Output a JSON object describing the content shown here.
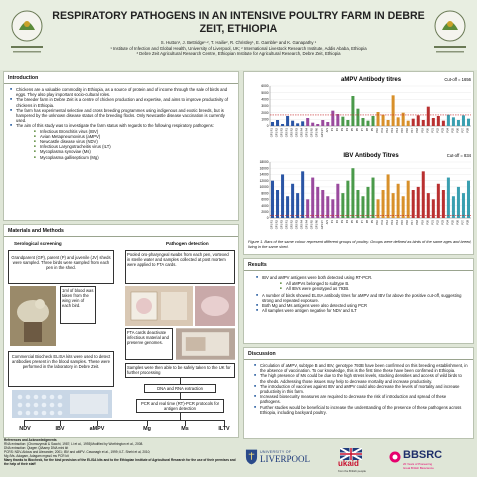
{
  "header": {
    "title": "RESPIRATORY PATHOGENS IN AN INTENSIVE POULTRY FARM IN DEBRE ZEIT, ETHIOPIA",
    "authors": "S. Hutton¹, J. Bettridge¹·², T. Hailie², R. Christley¹, E. Gamble¹ and K. Ganapathy ¹",
    "affil1": "¹ Institute of Infection and Global Health, University of Liverpool, UK; ² International Livestock Research Institute, Addis Ababa, Ethiopia",
    "affil2": "³ Debre Zeit Agricultural Research Centre, Ethiopian Institute for Agricultural Research, Debre Zeit, Ethiopia"
  },
  "intro": {
    "heading": "Introduction",
    "bullets": [
      "Chickens are a valuable commodity in Ethiopia, as a source of protein and of income through the sale of birds and eggs. They also play important socio-cultural roles.",
      "The breeder farm in Debre Zeit is a centre of chicken production and expertise, and aims to improve productivity of chickens in Ethiopia.",
      "The farm has experimental selective and cross breeding programmes using indigenous and exotic breeds, but is hampered by the unknown disease status of the breeding flocks. Only Newcastle disease vaccination is currently used.",
      "The aim of this study was to investigate the farm status with regards to the following respiratory pathogens:"
    ],
    "pathogens": [
      "Infectious Bronchitis virus (IBV)",
      "Avian Metapneumovirus (aMPV)",
      "Newcastle disease virus (NDV)",
      "Infectious Laryngotracheitis virus (ILT)",
      "Mycoplasma synoviae (Ms)",
      "Mycoplasma gallisepticum (Mg)"
    ]
  },
  "methods": {
    "heading": "Materials and Methods",
    "sero_heading": "Serological screening",
    "path_heading": "Pathogen detection",
    "box1": "Grandparent (GP), parent (P) and juvenile (JV) sheds were sampled. Three birds were sampled from each pen in the shed.",
    "box2": "1ml of blood was taken from the wing vein of each bird.",
    "box3": "Commercial Biocheck ELISA kits were used to detect antibodies present in the blood samples. These were performed in the laboratory in Debre Zeit.",
    "box4": "Pooled oro-pharyngeal swabs from each pen, vortexed in sterile water and samples collected at post mortem were applied to FTA cards.",
    "box5": "FTA cards deactivate infectious material and preserve genomes.",
    "box6": "Samples were then able to be safely taken to the UK for further processing",
    "box7": "DNA and RNA extraction",
    "box8": "PCR and real time (RT)-PCR protocols for antigen detection",
    "targets": [
      "NDV",
      "IBV",
      "aMPV",
      "Mg",
      "Ms",
      "ILTV"
    ]
  },
  "references": {
    "heading": "References and Acknowledgments",
    "lines": [
      "RNA extraction: (Chomczynski & Sacchi, 1987; Li et al., 1993)Modified by Worthington et al., 2008.",
      "DNA extraction: Qiagen QIAamp DNA mini kit",
      "PCRS: NDV-Aldous and Alexander, 2001; IBV and aMPV- Cavanagh et al., 1999; ILT- Shehi et al, 2010;",
      "Mg /Ms- Adagam, Adagam mgss4 ms PCR kit",
      "Many thanks to Biocheck, for the kind provision of the ELISA kits and to the Ethiopian Institute of Agricultural Research for the use of their premises and the help of their staff"
    ]
  },
  "chart_data": [
    {
      "type": "bar",
      "title": "aMPV Antibody titres",
      "annotation": "Cut-off = 1656",
      "cutoff": 1656,
      "ylim": [
        0,
        6000
      ],
      "yticks": [
        0,
        1000,
        2000,
        3000,
        4000,
        5000,
        6000
      ],
      "categories": [
        "GP1 R1",
        "GP1 R2",
        "GP1 R3",
        "GP2 R1",
        "GP2 R2",
        "GP2 R3",
        "GP2 R4",
        "GP1 R4",
        "GP1 R5",
        "GP1 R6",
        "GP1 R7",
        "JV1",
        "P1",
        "P2",
        "P3",
        "P4",
        "P5",
        "P6",
        "P7",
        "P8",
        "P9",
        "P10",
        "P11",
        "P12",
        "P13",
        "P14",
        "P15",
        "P16",
        "P17",
        "P18",
        "P19",
        "P20",
        "P21",
        "P22",
        "P23",
        "P24",
        "P25",
        "P26",
        "P27",
        "P28"
      ],
      "values": [
        600,
        900,
        300,
        1500,
        800,
        400,
        700,
        1200,
        500,
        300,
        900,
        600,
        2300,
        1800,
        1400,
        900,
        4500,
        2600,
        1200,
        800,
        1500,
        2100,
        1700,
        900,
        4600,
        1300,
        2000,
        800,
        1100,
        1600,
        900,
        2900,
        1200,
        1500,
        800,
        1700,
        1300,
        900,
        1600,
        1100
      ],
      "colors": [
        "#2a55a5",
        "#9a4a9e",
        "#4a9a4a",
        "#d8902a",
        "#b93030",
        "#3a9fb0"
      ]
    },
    {
      "type": "bar",
      "title": "IBV Antibody Titres",
      "annotation": "Cut-off = 834",
      "cutoff": 834,
      "ylim": [
        0,
        18000
      ],
      "yticks": [
        0,
        2000,
        4000,
        6000,
        8000,
        10000,
        12000,
        14000,
        16000,
        18000
      ],
      "categories": [
        "GP1 R1",
        "GP1 R2",
        "GP1 R3",
        "GP2 R1",
        "GP2 R2",
        "GP2 R3",
        "GP2 R4",
        "GP1 R4",
        "GP1 R5",
        "GP1 R6",
        "GP1 R7",
        "JV1",
        "P1",
        "P2",
        "P3",
        "P4",
        "P5",
        "P6",
        "P7",
        "P8",
        "P9",
        "P10",
        "P11",
        "P12",
        "P13",
        "P14",
        "P15",
        "P16",
        "P17",
        "P18",
        "P19",
        "P20",
        "P21",
        "P22",
        "P23",
        "P24",
        "P25",
        "P26",
        "P27",
        "P28"
      ],
      "values": [
        12000,
        9000,
        14000,
        7000,
        11000,
        8000,
        15000,
        6000,
        13000,
        10000,
        9000,
        7000,
        6000,
        11000,
        8000,
        12000,
        16000,
        9000,
        7000,
        10000,
        13000,
        6000,
        9000,
        14000,
        8000,
        11000,
        7000,
        12000,
        9000,
        10000,
        15000,
        8000,
        6000,
        11000,
        9000,
        13000,
        7000,
        10000,
        8000,
        12000
      ],
      "colors": [
        "#2a55a5",
        "#9a4a9e",
        "#4a9a4a",
        "#d8902a",
        "#b93030",
        "#3a9fb0"
      ]
    }
  ],
  "figure_caption": "Figure 1. Bars of the same colour represent different groups of poultry. Groups were defined as birds of the same ages and breed, living in the same shed.",
  "results": {
    "heading": "Results",
    "bullets": [
      "IBV and aMPV antigens were both detected using RT-PCR.",
      "A number of birds showed ELISA antibody titres for aMPV and IBV far above the positive cut-off, suggesting strong and repeated exposure.",
      "Both Mg and Ms antigens were also detected using PCR",
      "All samples were antigen negative for NDV and ILT"
    ],
    "sub_bullets": [
      "All aMPVs belonged to subtype B.",
      "All IBVs were genotyped as 793B."
    ]
  },
  "discussion": {
    "heading": "Discussion",
    "bullets": [
      "Circulation of aMPV, subtype B and IBV, genotype 793B have been confirmed on this breeding establishment, in the absence of vaccination. To our knowledge, this is the first time these have been confirmed in Ethiopia.",
      "The high presence of Ms could be due to the high stress levels, stocking densities and access of wild birds to the sheds. Addressing those issues may help to decrease mortality and increase productivity.",
      "The introduction of vaccines against IBV and aMPV could also decrease the levels of mortality and increase productivity in this farm.",
      "Increased biosecurity measures are required to decrease the risk of introduction and spread of these pathogens.",
      "Further studies would be beneficial to increase the understanding of the presence of these pathogens across Ethiopia, including backyard poultry."
    ]
  },
  "logos": {
    "liverpool_top": "UNIVERSITY OF",
    "liverpool_main": "LIVERPOOL",
    "ukaid": "ukaid",
    "ukaid_sub": "from the British people",
    "bbsrc": "BBSRC",
    "bbsrc_sub": "20 Years of Pioneering\nGreat British Bioscience"
  }
}
